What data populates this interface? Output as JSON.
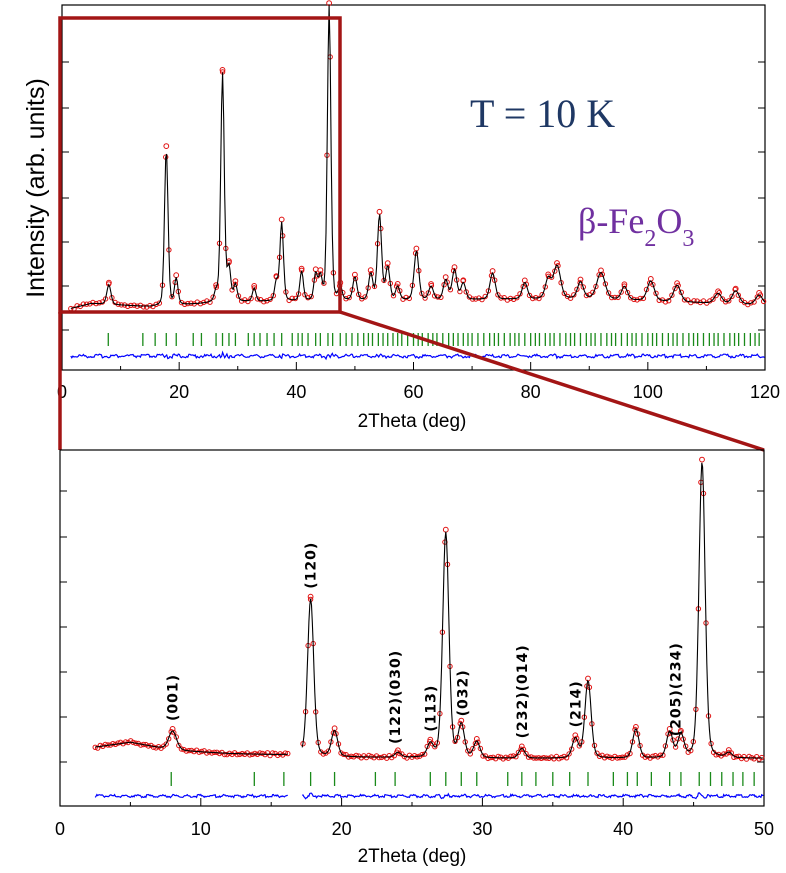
{
  "chart_data": [
    {
      "type": "line",
      "id": "overview",
      "title": "",
      "xlabel": "2Theta  (deg)",
      "ylabel": "Intensity (arb. units)",
      "xlim": [
        0,
        120
      ],
      "ylim": [
        0,
        100
      ],
      "xticks": [
        0,
        20,
        40,
        60,
        80,
        100,
        120
      ],
      "annotations": {
        "temperature": "T = 10 K",
        "phase_prefix": "β-Fe",
        "phase_sub1": "2",
        "phase_mid": "O",
        "phase_sub2": "3"
      },
      "background": {
        "points": [
          [
            1.5,
            17
          ],
          [
            5,
            18.5
          ],
          [
            10,
            18
          ],
          [
            15,
            17.5
          ],
          [
            30,
            19
          ],
          [
            60,
            19.5
          ],
          [
            90,
            20
          ],
          [
            120,
            18
          ]
        ]
      },
      "peaks": [
        {
          "x": 8.0,
          "h": 6,
          "w": 0.35
        },
        {
          "x": 17.8,
          "h": 48,
          "w": 0.3
        },
        {
          "x": 19.5,
          "h": 8,
          "w": 0.3
        },
        {
          "x": 26.3,
          "h": 3,
          "w": 0.3
        },
        {
          "x": 27.4,
          "h": 70,
          "w": 0.3
        },
        {
          "x": 28.5,
          "h": 10,
          "w": 0.3
        },
        {
          "x": 29.6,
          "h": 5,
          "w": 0.3
        },
        {
          "x": 32.8,
          "h": 4,
          "w": 0.3
        },
        {
          "x": 36.6,
          "h": 6,
          "w": 0.3
        },
        {
          "x": 37.5,
          "h": 24,
          "w": 0.3
        },
        {
          "x": 40.9,
          "h": 9,
          "w": 0.3
        },
        {
          "x": 43.3,
          "h": 8,
          "w": 0.3
        },
        {
          "x": 44.1,
          "h": 7,
          "w": 0.3
        },
        {
          "x": 45.6,
          "h": 90,
          "w": 0.3
        },
        {
          "x": 47.5,
          "h": 4,
          "w": 0.3
        },
        {
          "x": 50.0,
          "h": 7,
          "w": 0.35
        },
        {
          "x": 52.7,
          "h": 8,
          "w": 0.35
        },
        {
          "x": 54.2,
          "h": 26,
          "w": 0.35
        },
        {
          "x": 55.6,
          "h": 10,
          "w": 0.35
        },
        {
          "x": 57.3,
          "h": 4,
          "w": 0.35
        },
        {
          "x": 60.5,
          "h": 15,
          "w": 0.4
        },
        {
          "x": 63.0,
          "h": 4,
          "w": 0.4
        },
        {
          "x": 65.5,
          "h": 6,
          "w": 0.4
        },
        {
          "x": 67.0,
          "h": 9,
          "w": 0.4
        },
        {
          "x": 68.5,
          "h": 5,
          "w": 0.4
        },
        {
          "x": 73.5,
          "h": 8,
          "w": 0.45
        },
        {
          "x": 79.0,
          "h": 5,
          "w": 0.45
        },
        {
          "x": 83.0,
          "h": 6,
          "w": 0.5
        },
        {
          "x": 84.5,
          "h": 10,
          "w": 0.6
        },
        {
          "x": 88.5,
          "h": 5,
          "w": 0.5
        },
        {
          "x": 92.0,
          "h": 8,
          "w": 0.7
        },
        {
          "x": 96.0,
          "h": 4,
          "w": 0.5
        },
        {
          "x": 100.5,
          "h": 6,
          "w": 0.6
        },
        {
          "x": 105.0,
          "h": 5,
          "w": 0.6
        },
        {
          "x": 112.0,
          "h": 3,
          "w": 0.6
        },
        {
          "x": 115.0,
          "h": 4,
          "w": 0.6
        },
        {
          "x": 119.0,
          "h": 3,
          "w": 0.6
        }
      ],
      "bragg_positions": [
        7.9,
        13.8,
        15.9,
        17.8,
        19.5,
        22.4,
        23.8,
        26.3,
        27.4,
        28.5,
        29.6,
        31.8,
        32.8,
        33.8,
        35.0,
        36.2,
        37.5,
        39.3,
        40.3,
        41.0,
        42.0,
        43.3,
        44.1,
        45.4,
        46.2,
        47.5,
        48.5,
        49.5,
        50.5,
        51.5,
        52.3,
        53.0,
        54.0,
        54.8,
        55.6,
        56.5,
        57.3,
        58.0,
        59.0,
        60.0,
        60.8,
        61.5,
        62.5,
        63.3,
        64.0,
        65.0,
        66.0,
        66.8,
        67.6,
        68.5,
        69.3,
        70.0,
        71.0,
        72.0,
        73.0,
        73.8,
        74.5,
        75.5,
        76.5,
        77.3,
        78.0,
        79.0,
        80.0,
        80.8,
        81.5,
        82.5,
        83.3,
        84.0,
        85.0,
        86.0,
        86.8,
        87.5,
        88.5,
        89.5,
        90.3,
        91.0,
        92.0,
        93.0,
        93.8,
        94.5,
        95.5,
        96.5,
        97.3,
        98.0,
        99.0,
        100.0,
        100.8,
        101.5,
        102.5,
        103.5,
        104.3,
        105.0,
        106.0,
        107.0,
        107.8,
        108.5,
        109.5,
        110.5,
        111.3,
        112.0,
        113.0,
        114.0,
        114.8,
        115.5,
        116.5,
        117.5,
        118.3,
        119.0
      ]
    },
    {
      "type": "line",
      "id": "zoom",
      "title": "",
      "xlabel": "2Theta  (deg)",
      "ylabel": "",
      "xlim": [
        0,
        50
      ],
      "ylim": [
        0,
        100
      ],
      "xticks": [
        0,
        10,
        20,
        30,
        40,
        50
      ],
      "data_gap": [
        16.2,
        17.2
      ],
      "background": {
        "points": [
          [
            2.5,
            19
          ],
          [
            5,
            20.5
          ],
          [
            8,
            18
          ],
          [
            12,
            17
          ],
          [
            16,
            16.5
          ],
          [
            17.2,
            16
          ],
          [
            30,
            15.5
          ],
          [
            50,
            15.5
          ]
        ]
      },
      "peaks": [
        {
          "x": 8.0,
          "h": 6,
          "w": 0.28
        },
        {
          "x": 17.8,
          "h": 49,
          "w": 0.22
        },
        {
          "x": 19.5,
          "h": 8,
          "w": 0.22
        },
        {
          "x": 24.0,
          "h": 1.5,
          "w": 0.22
        },
        {
          "x": 26.3,
          "h": 4,
          "w": 0.22
        },
        {
          "x": 27.4,
          "h": 70,
          "w": 0.22
        },
        {
          "x": 28.5,
          "h": 10,
          "w": 0.22
        },
        {
          "x": 29.6,
          "h": 5,
          "w": 0.22
        },
        {
          "x": 32.8,
          "h": 3,
          "w": 0.22
        },
        {
          "x": 36.6,
          "h": 6,
          "w": 0.22
        },
        {
          "x": 37.5,
          "h": 24,
          "w": 0.22
        },
        {
          "x": 40.9,
          "h": 9,
          "w": 0.22
        },
        {
          "x": 43.3,
          "h": 8,
          "w": 0.22
        },
        {
          "x": 44.1,
          "h": 7,
          "w": 0.22
        },
        {
          "x": 45.6,
          "h": 92,
          "w": 0.22
        },
        {
          "x": 47.5,
          "h": 1.5,
          "w": 0.22
        }
      ],
      "bragg_positions": [
        7.9,
        13.8,
        15.9,
        17.8,
        19.5,
        22.4,
        23.8,
        26.3,
        27.4,
        28.5,
        29.6,
        31.8,
        32.8,
        33.8,
        35.0,
        36.2,
        37.5,
        39.3,
        40.3,
        41.0,
        42.0,
        43.3,
        44.1,
        45.4,
        46.2,
        47.0,
        47.8,
        48.5,
        49.3
      ],
      "hkl_labels": [
        {
          "text": "(001)",
          "x": 8.0
        },
        {
          "text": "(120)",
          "x": 17.8
        },
        {
          "text": "(122)(030)",
          "x": 23.8
        },
        {
          "text": "(113)",
          "x": 26.3
        },
        {
          "text": "(032)",
          "x": 28.6
        },
        {
          "text": "(232)(014)",
          "x": 32.8
        },
        {
          "text": "(214)",
          "x": 36.6
        },
        {
          "text": "(205)(234)",
          "x": 43.7
        }
      ]
    }
  ]
}
